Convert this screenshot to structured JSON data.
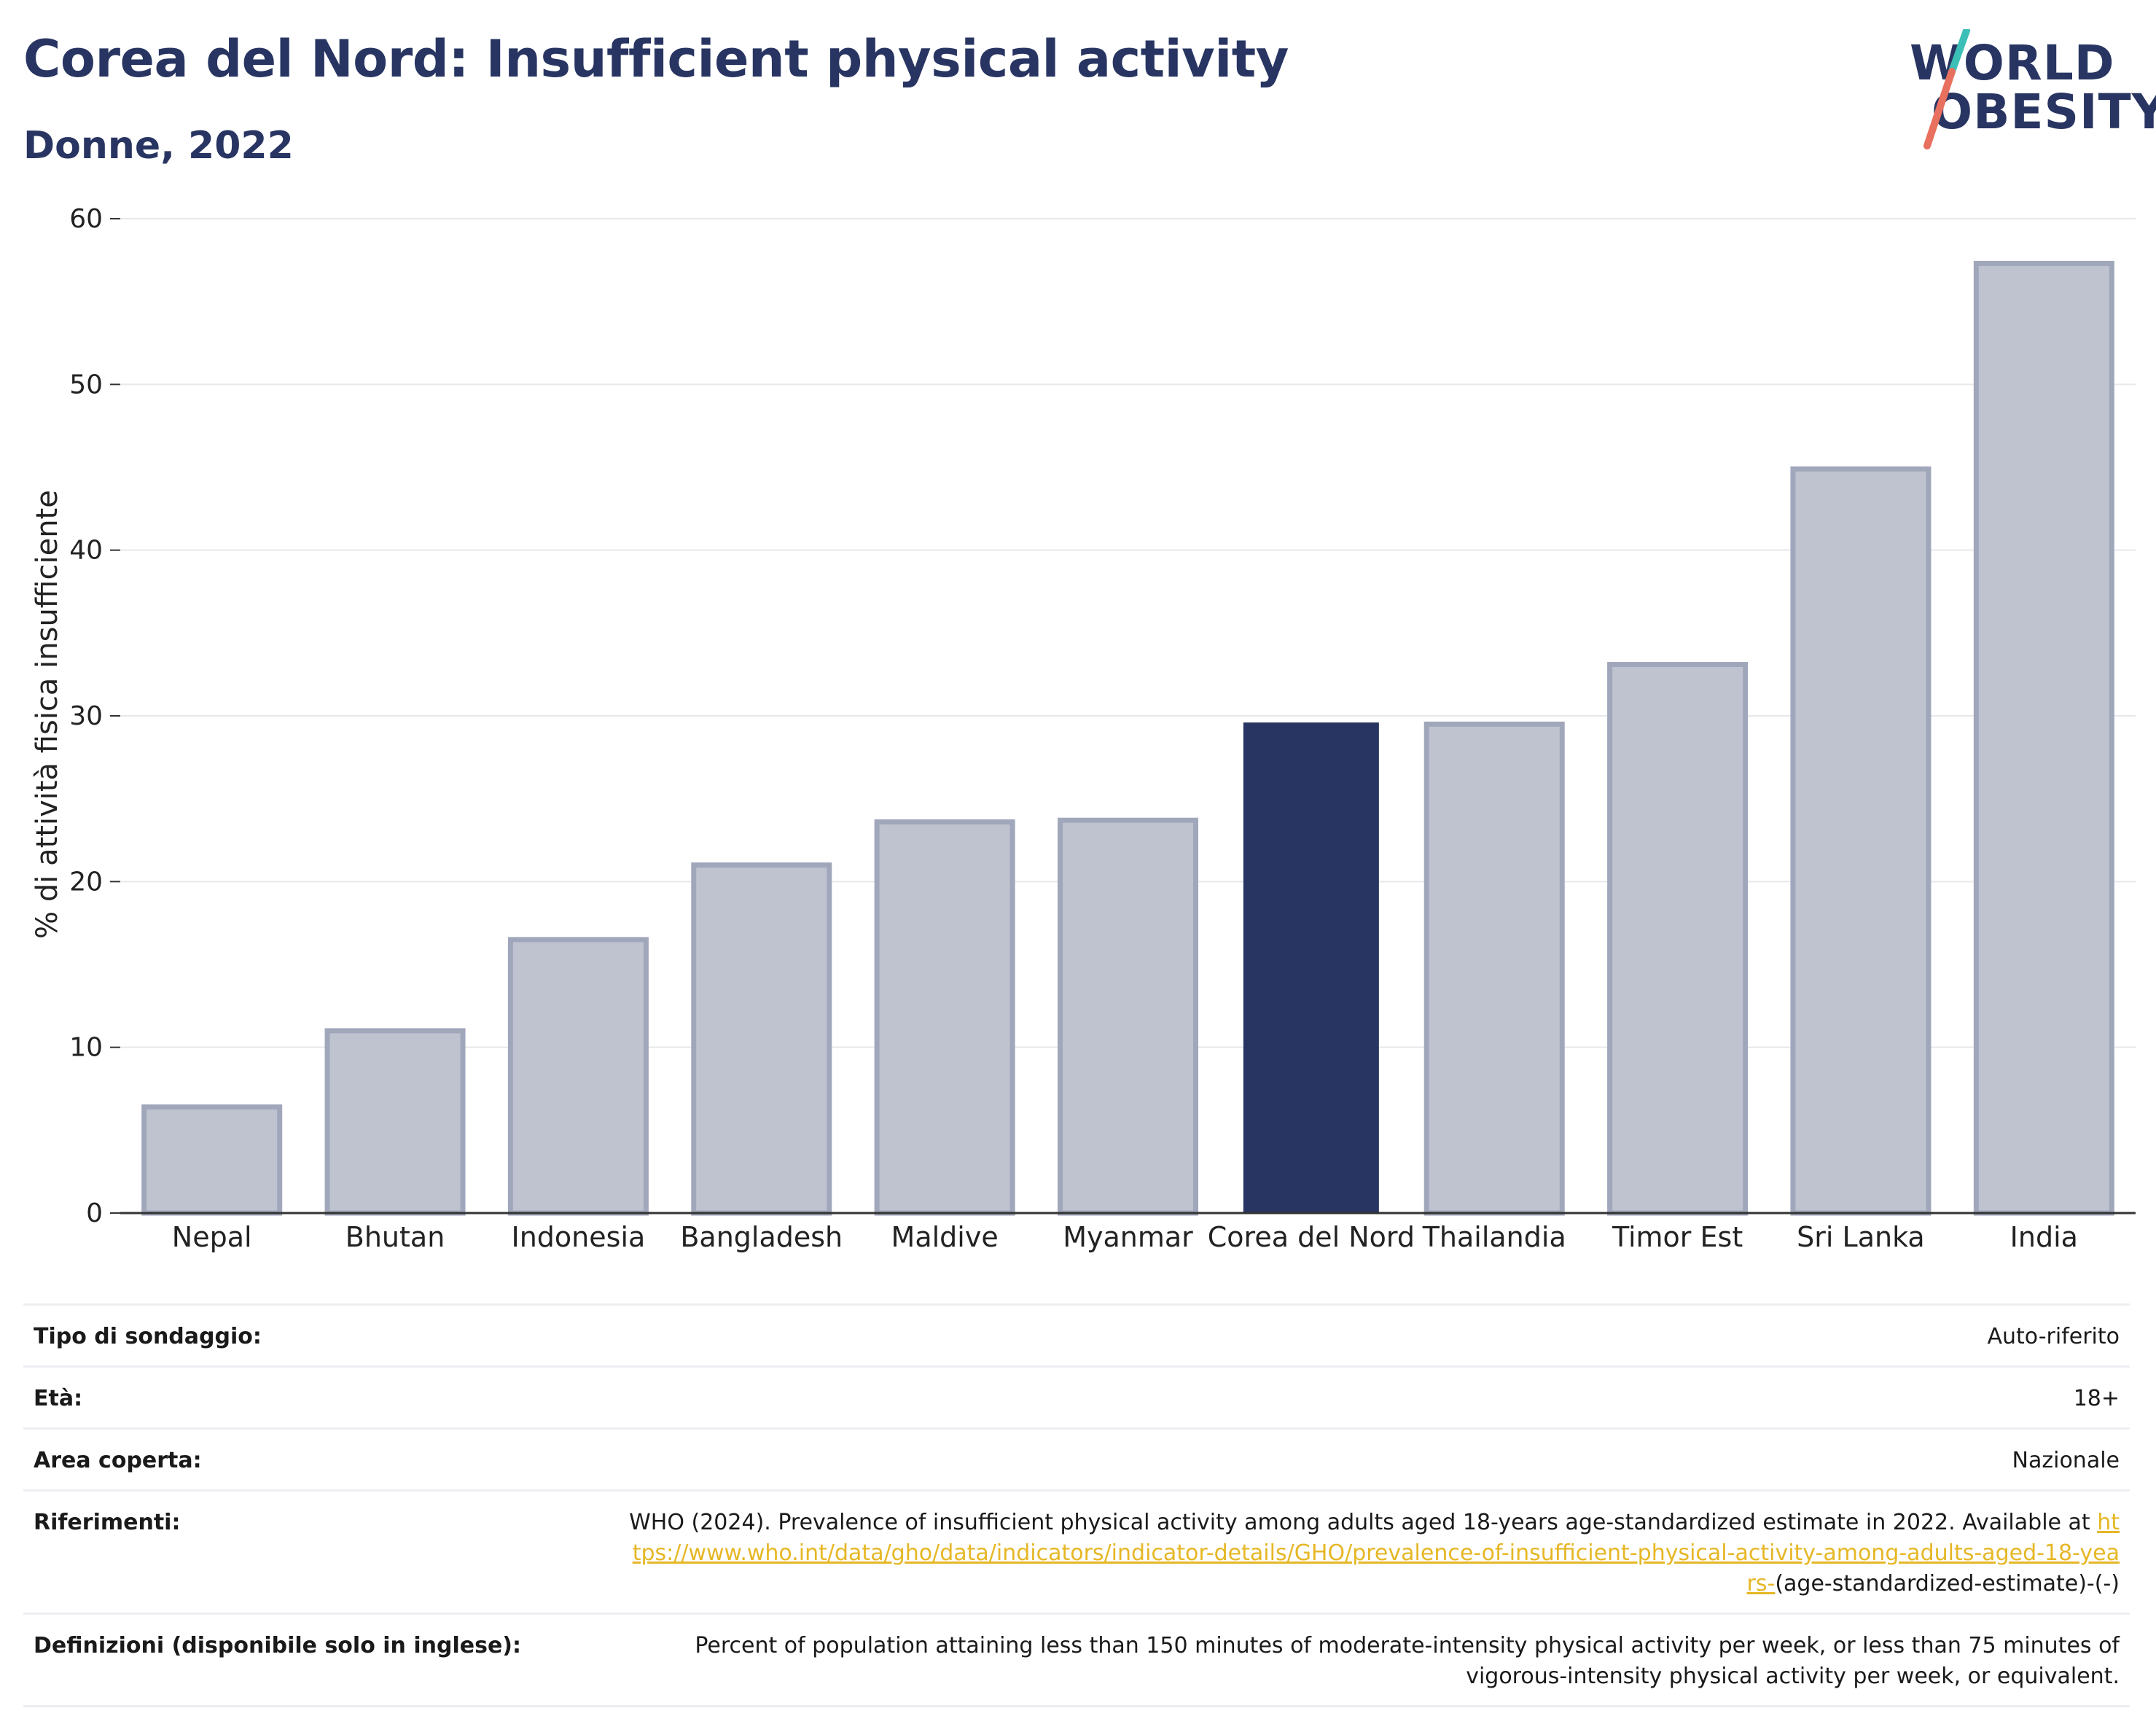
{
  "header": {
    "title": "Corea del Nord: Insufficient physical activity",
    "subtitle": "Donne, 2022"
  },
  "logo": {
    "line1": "WORLD",
    "line2": "OBESITY"
  },
  "colors": {
    "highlight": "#283562",
    "bar_fill": "#bfc3d0",
    "bar_stroke": "#a1a7bb",
    "grid": "#e6e8ec",
    "link": "#e6b726"
  },
  "chart_data": {
    "type": "bar",
    "title": "Corea del Nord: Insufficient physical activity",
    "subtitle": "Donne, 2022",
    "xlabel": "",
    "ylabel": "% di attività fisica insufficiente",
    "categories": [
      "Nepal",
      "Bhutan",
      "Indonesia",
      "Bangladesh",
      "Maldive",
      "Myanmar",
      "Corea del Nord",
      "Thailandia",
      "Timor Est",
      "Sri Lanka",
      "India"
    ],
    "values": [
      6.4,
      11.0,
      16.5,
      21.0,
      23.6,
      23.7,
      29.6,
      29.5,
      33.1,
      44.9,
      57.3
    ],
    "highlight": "Corea del Nord",
    "ylim": [
      0,
      60
    ],
    "yticks": [
      0,
      10,
      20,
      30,
      40,
      50,
      60
    ],
    "grid": true
  },
  "meta": [
    {
      "label": "Tipo di sondaggio:",
      "value": "Auto-riferito"
    },
    {
      "label": "Età:",
      "value": "18+"
    },
    {
      "label": "Area coperta:",
      "value": "Nazionale"
    },
    {
      "label": "Riferimenti:",
      "value": "WHO (2024). Prevalence of insufficient physical activity among adults aged 18-years age-standardized estimate in 2022. Available at",
      "link": "https://www.who.int/data/gho/data/indicators/indicator-details/GHO/prevalence-of-insufficient-physical-activity-among-adults-aged-18-years-",
      "suffix": "(age-standardized-estimate)-(-)"
    },
    {
      "label": "Definizioni (disponibile solo in inglese):",
      "value": "Percent of population attaining less than 150 minutes of moderate-intensity physical activity per week, or less than 75 minutes of vigorous-intensity physical activity per week, or equivalent."
    }
  ]
}
